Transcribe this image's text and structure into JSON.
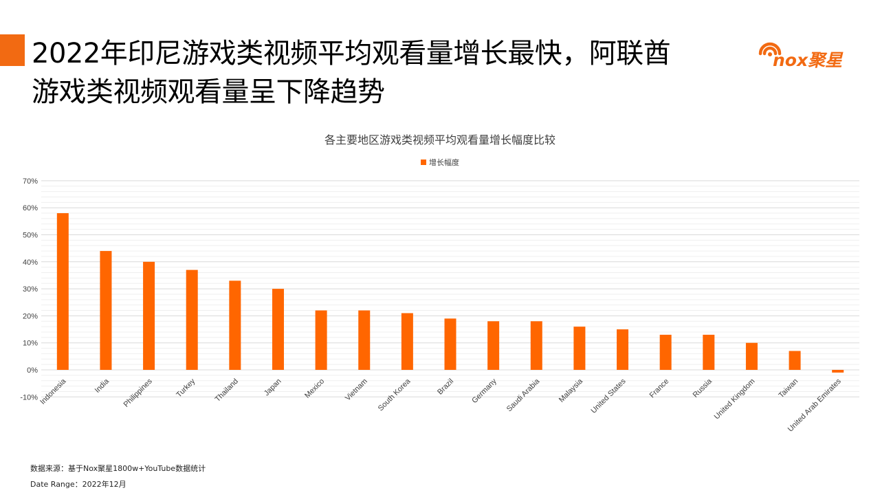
{
  "headline": {
    "line1": "2022年印尼游戏类视频平均观看量增长最快，阿联酋",
    "line2": "游戏类视频观看量呈下降趋势"
  },
  "logo": {
    "text": "nox聚星",
    "color": "#F26A12",
    "icon": "signal-wave-logo-icon"
  },
  "colors": {
    "accent": "#F26A12",
    "bar": "#FF6600"
  },
  "chart_data": {
    "type": "bar",
    "title": "各主要地区游戏类视频平均观看量增长幅度比较",
    "legend": {
      "label": "增长幅度",
      "placement": "top-center"
    },
    "categories": [
      "Indonesia",
      "India",
      "Philippines",
      "Turkey",
      "Thailand",
      "Japan",
      "Mexico",
      "Vietnam",
      "South Korea",
      "Brazil",
      "Germany",
      "Saudi Arabia",
      "Malaysia",
      "United States",
      "France",
      "Russia",
      "United Kingdom",
      "Taiwan",
      "United Arab Emirates"
    ],
    "series": [
      {
        "name": "增长幅度",
        "values": [
          58,
          44,
          40,
          37,
          33,
          30,
          22,
          22,
          21,
          19,
          18,
          18,
          16,
          15,
          13,
          13,
          10,
          7,
          -1
        ]
      }
    ],
    "value_unit": "%",
    "ylim": [
      -10,
      70
    ],
    "yticks": [
      "-10%",
      "0%",
      "10%",
      "20%",
      "30%",
      "40%",
      "50%",
      "60%",
      "70%"
    ],
    "grid": true
  },
  "footer": {
    "source": "数据来源：基于Nox聚星1800w+YouTube数据统计",
    "date_range": "Date Range：2022年12月"
  }
}
